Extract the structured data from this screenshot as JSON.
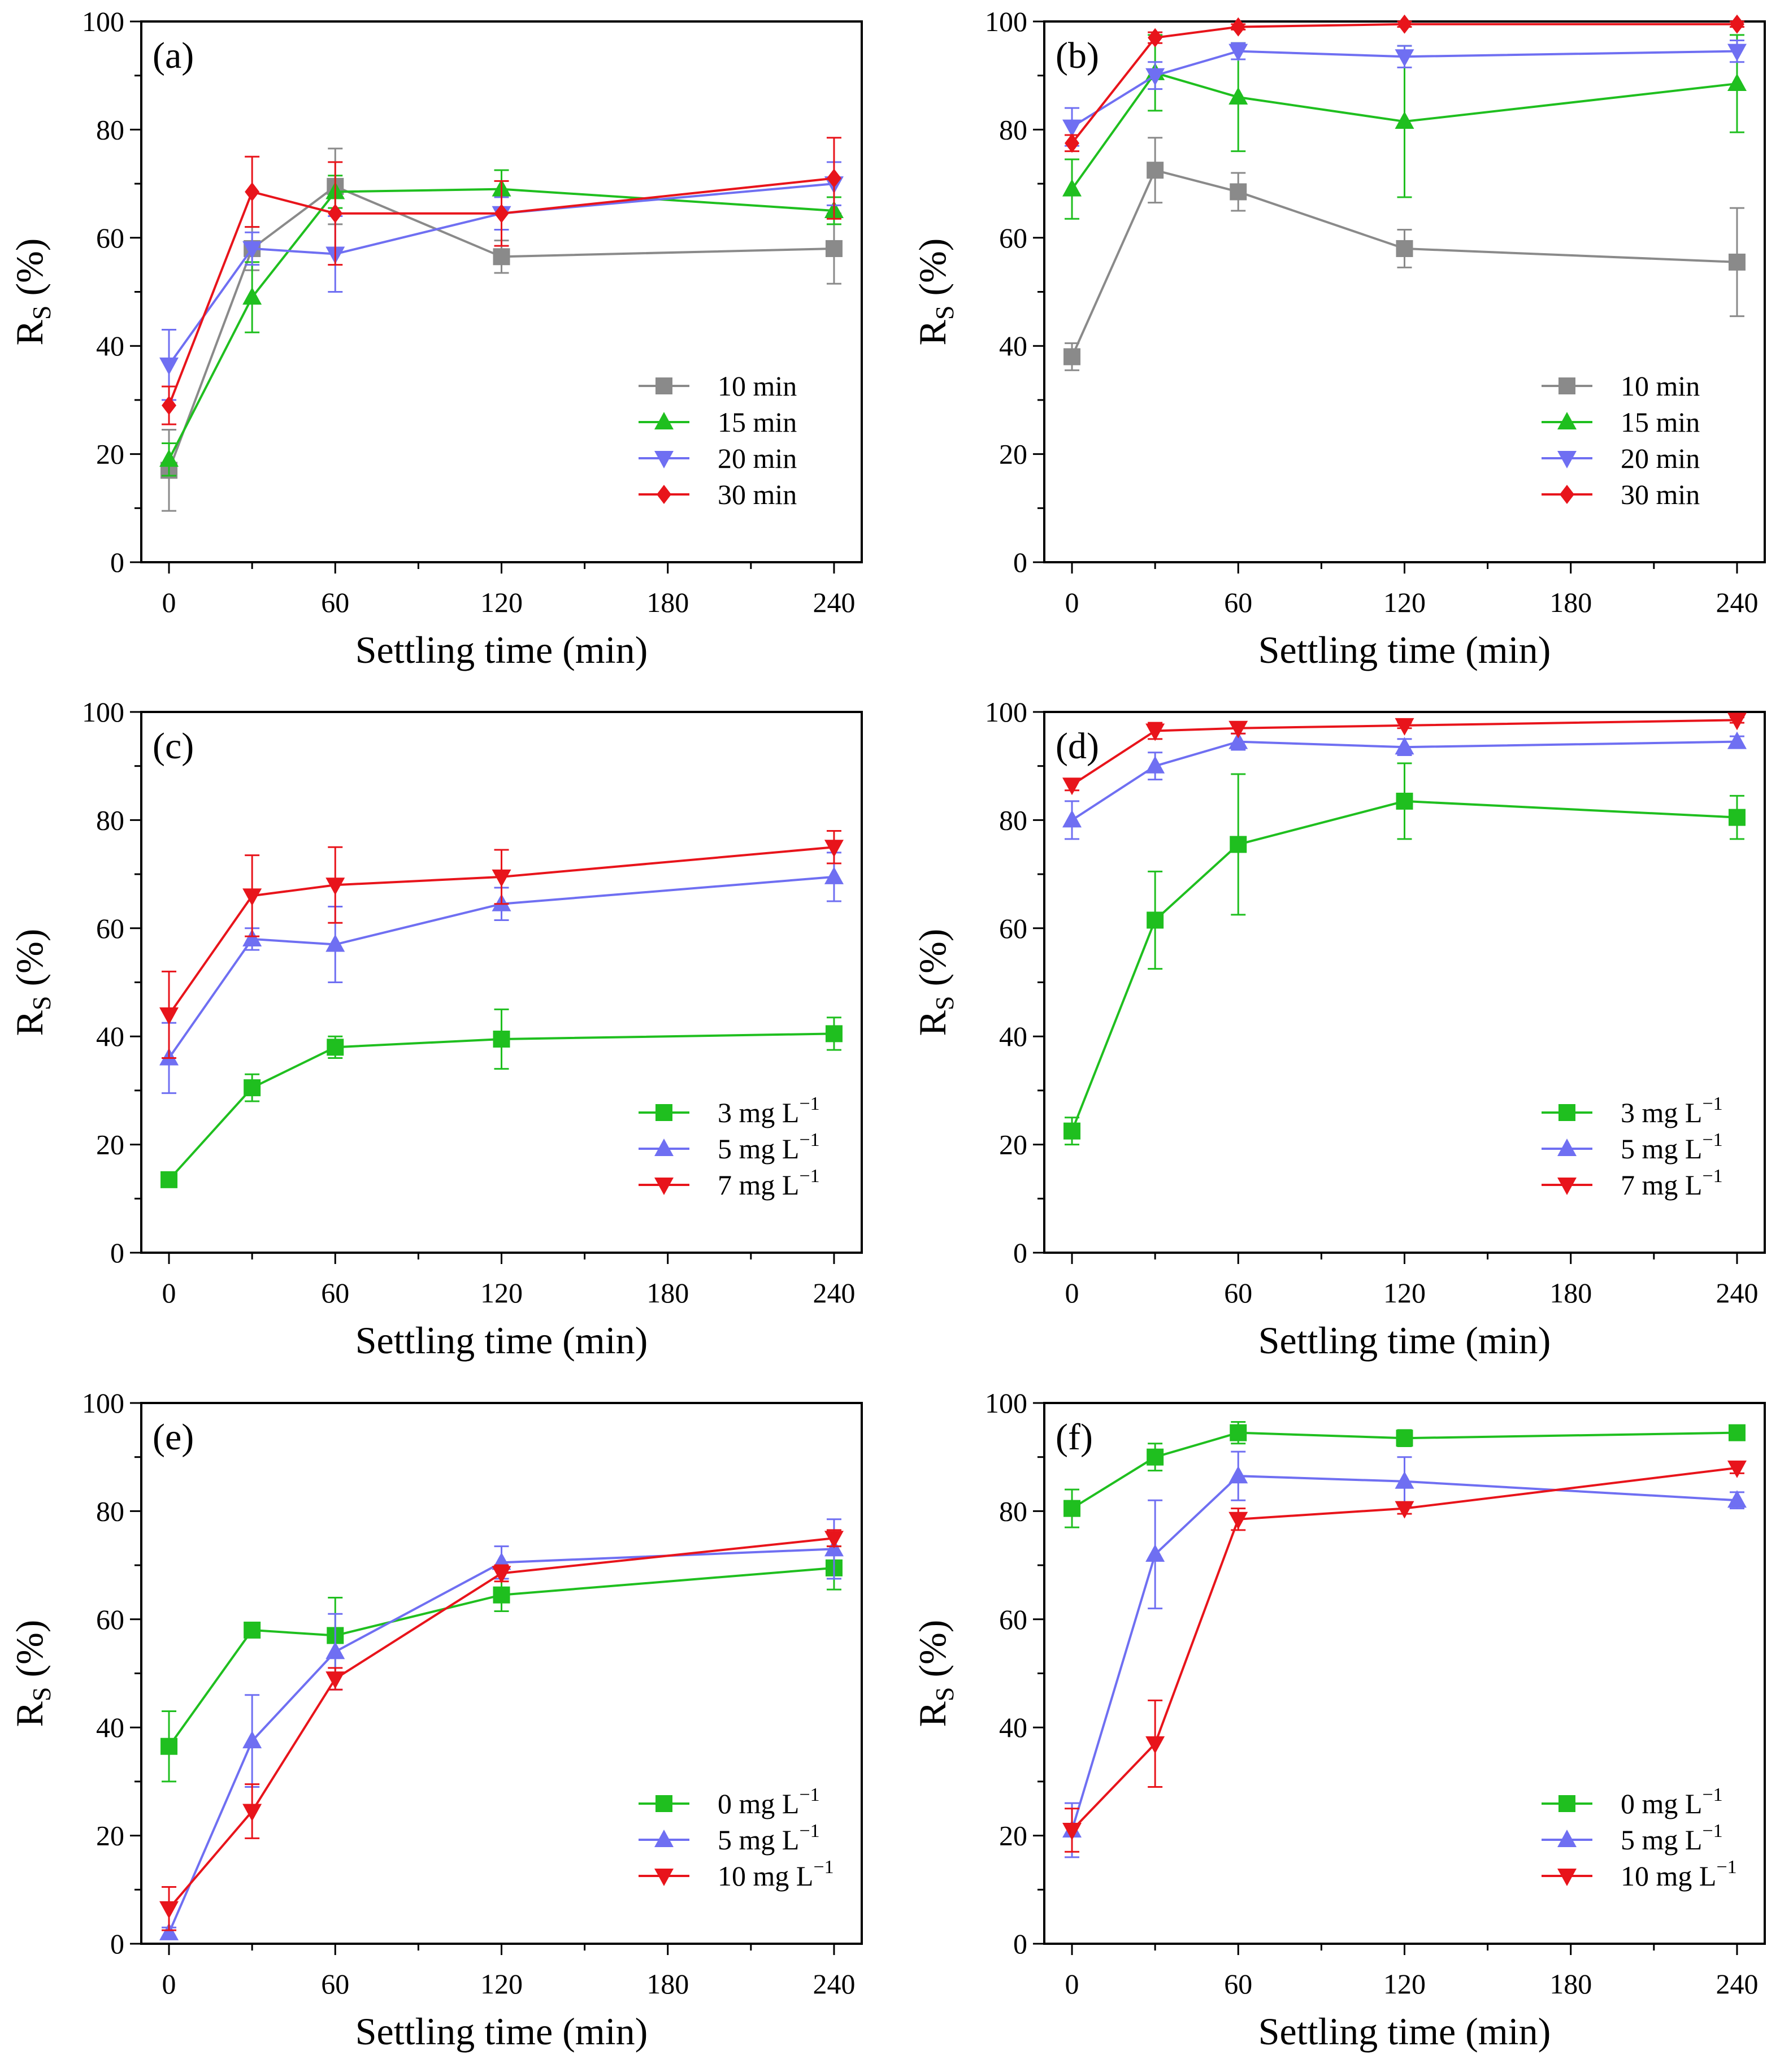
{
  "figure": {
    "colors": {
      "gray": "#8a8a8a",
      "green": "#1fbf1f",
      "blue": "#6f6ff2",
      "red": "#e8141b"
    },
    "markers": {
      "gray": "square",
      "green": "triangle-up",
      "blue": "triangle-down",
      "red": "diamond"
    }
  },
  "chart_data": [
    {
      "type": "line",
      "label": "(a)",
      "title": "",
      "xlabel": "Settling time (min)",
      "ylabel": "R",
      "ylabel_sub": "S",
      "ylabel_unit": " (%)",
      "xlim": [
        -10,
        250
      ],
      "ylim": [
        0,
        100
      ],
      "xticks": [
        0,
        60,
        120,
        180,
        240
      ],
      "yticks": [
        0,
        20,
        40,
        60,
        80,
        100
      ],
      "legend_loc": "lower-right",
      "x": [
        0,
        30,
        60,
        120,
        240
      ],
      "series": [
        {
          "name": "10 min",
          "color": "#8a8a8a",
          "marker": "square",
          "values": [
            17,
            58,
            69.5,
            56.5,
            58
          ],
          "err": [
            7.5,
            4,
            7,
            3,
            6.5
          ]
        },
        {
          "name": "15 min",
          "color": "#1fbf1f",
          "marker": "triangle-up",
          "values": [
            19,
            49,
            68.5,
            69,
            65
          ],
          "err": [
            3,
            6.5,
            3,
            3.5,
            2.5
          ]
        },
        {
          "name": "20 min",
          "color": "#6f6ff2",
          "marker": "triangle-down",
          "values": [
            36.5,
            58,
            57,
            64.5,
            70
          ],
          "err": [
            6.5,
            3,
            7,
            3,
            4
          ]
        },
        {
          "name": "30 min",
          "color": "#e8141b",
          "marker": "diamond",
          "values": [
            29,
            68.5,
            64.5,
            64.5,
            71
          ],
          "err": [
            3.5,
            6.5,
            9.5,
            6,
            7.5
          ]
        }
      ]
    },
    {
      "type": "line",
      "label": "(b)",
      "title": "",
      "xlabel": "Settling time (min)",
      "ylabel": "R",
      "ylabel_sub": "S",
      "ylabel_unit": " (%)",
      "xlim": [
        -10,
        250
      ],
      "ylim": [
        0,
        100
      ],
      "xticks": [
        0,
        60,
        120,
        180,
        240
      ],
      "yticks": [
        0,
        20,
        40,
        60,
        80,
        100
      ],
      "legend_loc": "lower-right",
      "x": [
        0,
        30,
        60,
        120,
        240
      ],
      "series": [
        {
          "name": "10 min",
          "color": "#8a8a8a",
          "marker": "square",
          "values": [
            38,
            72.5,
            68.5,
            58,
            55.5
          ],
          "err": [
            2.5,
            6,
            3.5,
            3.5,
            10
          ]
        },
        {
          "name": "15 min",
          "color": "#1fbf1f",
          "marker": "triangle-up",
          "values": [
            69,
            90.5,
            86,
            81.5,
            88.5
          ],
          "err": [
            5.5,
            7,
            10,
            14,
            9
          ]
        },
        {
          "name": "20 min",
          "color": "#6f6ff2",
          "marker": "triangle-down",
          "values": [
            80.5,
            90,
            94.5,
            93.5,
            94.5
          ],
          "err": [
            3.5,
            2.5,
            1.5,
            2,
            2
          ]
        },
        {
          "name": "30 min",
          "color": "#e8141b",
          "marker": "diamond",
          "values": [
            77.5,
            97,
            99,
            99.5,
            99.5
          ],
          "err": [
            1.5,
            1,
            0.5,
            0.5,
            0.5
          ]
        }
      ]
    },
    {
      "type": "line",
      "label": "(c)",
      "title": "",
      "xlabel": "Settling time (min)",
      "ylabel": "R",
      "ylabel_sub": "S",
      "ylabel_unit": " (%)",
      "xlim": [
        -10,
        250
      ],
      "ylim": [
        0,
        100
      ],
      "xticks": [
        0,
        60,
        120,
        180,
        240
      ],
      "yticks": [
        0,
        20,
        40,
        60,
        80,
        100
      ],
      "legend_loc": "lower-right",
      "x": [
        0,
        30,
        60,
        120,
        240
      ],
      "series": [
        {
          "name": "3 mg L",
          "name_sup": "−1",
          "color": "#1fbf1f",
          "marker": "square",
          "values": [
            13.5,
            30.5,
            38,
            39.5,
            40.5
          ],
          "err": [
            1,
            2.5,
            2,
            5.5,
            3
          ]
        },
        {
          "name": "5 mg L",
          "name_sup": "−1",
          "color": "#6f6ff2",
          "marker": "triangle-up",
          "values": [
            36,
            58,
            57,
            64.5,
            69.5
          ],
          "err": [
            6.5,
            2,
            7,
            3,
            4.5
          ]
        },
        {
          "name": "7 mg L",
          "name_sup": "−1",
          "color": "#e8141b",
          "marker": "triangle-down",
          "values": [
            44,
            66,
            68,
            69.5,
            75
          ],
          "err": [
            8,
            7.5,
            7,
            5,
            3
          ]
        }
      ]
    },
    {
      "type": "line",
      "label": "(d)",
      "title": "",
      "xlabel": "Settling time (min)",
      "ylabel": "R",
      "ylabel_sub": "S",
      "ylabel_unit": " (%)",
      "xlim": [
        -10,
        250
      ],
      "ylim": [
        0,
        100
      ],
      "xticks": [
        0,
        60,
        120,
        180,
        240
      ],
      "yticks": [
        0,
        20,
        40,
        60,
        80,
        100
      ],
      "legend_loc": "lower-right",
      "x": [
        0,
        30,
        60,
        120,
        240
      ],
      "series": [
        {
          "name": "3 mg L",
          "name_sup": "−1",
          "color": "#1fbf1f",
          "marker": "square",
          "values": [
            22.5,
            61.5,
            75.5,
            83.5,
            80.5
          ],
          "err": [
            2.5,
            9,
            13,
            7,
            4
          ]
        },
        {
          "name": "5 mg L",
          "name_sup": "−1",
          "color": "#6f6ff2",
          "marker": "triangle-up",
          "values": [
            80,
            90,
            94.5,
            93.5,
            94.5
          ],
          "err": [
            3.5,
            2.5,
            1.5,
            1.5,
            1
          ]
        },
        {
          "name": "7 mg L",
          "name_sup": "−1",
          "color": "#e8141b",
          "marker": "triangle-down",
          "values": [
            86.5,
            96.5,
            97,
            97.5,
            98.5
          ],
          "err": [
            1,
            1.5,
            1,
            0.5,
            0.5
          ]
        }
      ]
    },
    {
      "type": "line",
      "label": "(e)",
      "title": "",
      "xlabel": "Settling time (min)",
      "ylabel": "R",
      "ylabel_sub": "S",
      "ylabel_unit": " (%)",
      "xlim": [
        -10,
        250
      ],
      "ylim": [
        0,
        100
      ],
      "xticks": [
        0,
        60,
        120,
        180,
        240
      ],
      "yticks": [
        0,
        20,
        40,
        60,
        80,
        100
      ],
      "legend_loc": "lower-right",
      "x": [
        0,
        30,
        60,
        120,
        240
      ],
      "series": [
        {
          "name": "0 mg L",
          "name_sup": "−1",
          "color": "#1fbf1f",
          "marker": "square",
          "values": [
            36.5,
            58,
            57,
            64.5,
            69.5
          ],
          "err": [
            6.5,
            0.5,
            7,
            3,
            4
          ]
        },
        {
          "name": "5 mg L",
          "name_sup": "−1",
          "color": "#6f6ff2",
          "marker": "triangle-up",
          "values": [
            2,
            37.5,
            54,
            70.5,
            73
          ],
          "err": [
            1,
            8.5,
            7,
            3,
            5.5
          ]
        },
        {
          "name": "10 mg L",
          "name_sup": "−1",
          "color": "#e8141b",
          "marker": "triangle-down",
          "values": [
            6.5,
            24.5,
            49,
            68.5,
            75
          ],
          "err": [
            4,
            5,
            2,
            1.5,
            1.5
          ]
        }
      ]
    },
    {
      "type": "line",
      "label": "(f)",
      "title": "",
      "xlabel": "Settling time (min)",
      "ylabel": "R",
      "ylabel_sub": "S",
      "ylabel_unit": " (%)",
      "xlim": [
        -10,
        250
      ],
      "ylim": [
        0,
        100
      ],
      "xticks": [
        0,
        60,
        120,
        180,
        240
      ],
      "yticks": [
        0,
        20,
        40,
        60,
        80,
        100
      ],
      "legend_loc": "lower-right",
      "x": [
        0,
        30,
        60,
        120,
        240
      ],
      "series": [
        {
          "name": "0 mg L",
          "name_sup": "−1",
          "color": "#1fbf1f",
          "marker": "square",
          "values": [
            80.5,
            90,
            94.5,
            93.5,
            94.5
          ],
          "err": [
            3.5,
            2.5,
            2,
            1.5,
            1
          ]
        },
        {
          "name": "5 mg L",
          "name_sup": "−1",
          "color": "#6f6ff2",
          "marker": "triangle-up",
          "values": [
            21,
            72,
            86.5,
            85.5,
            82
          ],
          "err": [
            5,
            10,
            4.5,
            4.5,
            1.5
          ]
        },
        {
          "name": "10 mg L",
          "name_sup": "−1",
          "color": "#e8141b",
          "marker": "triangle-down",
          "values": [
            21,
            37,
            78.5,
            80.5,
            88
          ],
          "err": [
            4,
            8,
            2,
            1,
            1
          ]
        }
      ]
    }
  ]
}
